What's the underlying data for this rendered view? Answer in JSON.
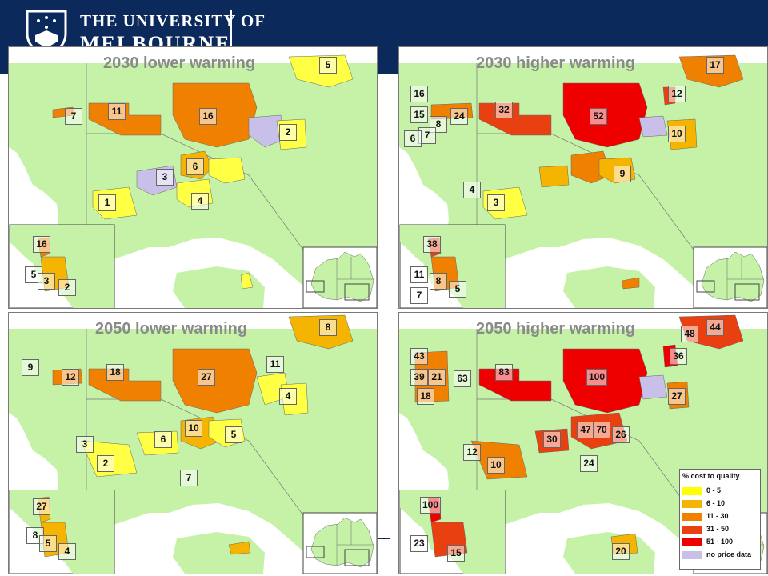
{
  "header": {
    "line1": "THE UNIVERSITY OF",
    "line2": "MELBOURNE"
  },
  "panels": [
    {
      "title": "2030 lower warming",
      "labels": [
        "5",
        "7",
        "11",
        "16",
        "2",
        "3",
        "6",
        "1",
        "4",
        "16",
        "5",
        "3",
        "2"
      ]
    },
    {
      "title": "2030 higher warming",
      "labels": [
        "17",
        "16",
        "15",
        "8",
        "24",
        "32",
        "52",
        "12",
        "10",
        "7",
        "6",
        "4",
        "9",
        "3",
        "38",
        "11",
        "8",
        "5",
        "7"
      ]
    },
    {
      "title": "2050 lower warming",
      "labels": [
        "8",
        "9",
        "12",
        "18",
        "27",
        "11",
        "4",
        "3",
        "6",
        "10",
        "5",
        "2",
        "7",
        "27",
        "8",
        "5",
        "4"
      ]
    },
    {
      "title": "2050 higher warming",
      "labels": [
        "48",
        "44",
        "43",
        "39",
        "21",
        "63",
        "83",
        "100",
        "36",
        "18",
        "27",
        "12",
        "30",
        "47",
        "70",
        "26",
        "10",
        "24",
        "100",
        "23",
        "15",
        "20"
      ]
    }
  ],
  "legend": {
    "title": "% cost to quality",
    "items": [
      {
        "label": "0 - 5",
        "color": "#ffff00"
      },
      {
        "label": "6 - 10",
        "color": "#f5b400"
      },
      {
        "label": "11 - 30",
        "color": "#f08000"
      },
      {
        "label": "31 - 50",
        "color": "#e84010"
      },
      {
        "label": "51 - 100",
        "color": "#ee0000"
      },
      {
        "label": "no price data",
        "color": "#c8c0e8"
      }
    ]
  },
  "colors": {
    "land": "#c6f2a8",
    "sea": "#ffffff",
    "header": "#0b2a5b"
  }
}
